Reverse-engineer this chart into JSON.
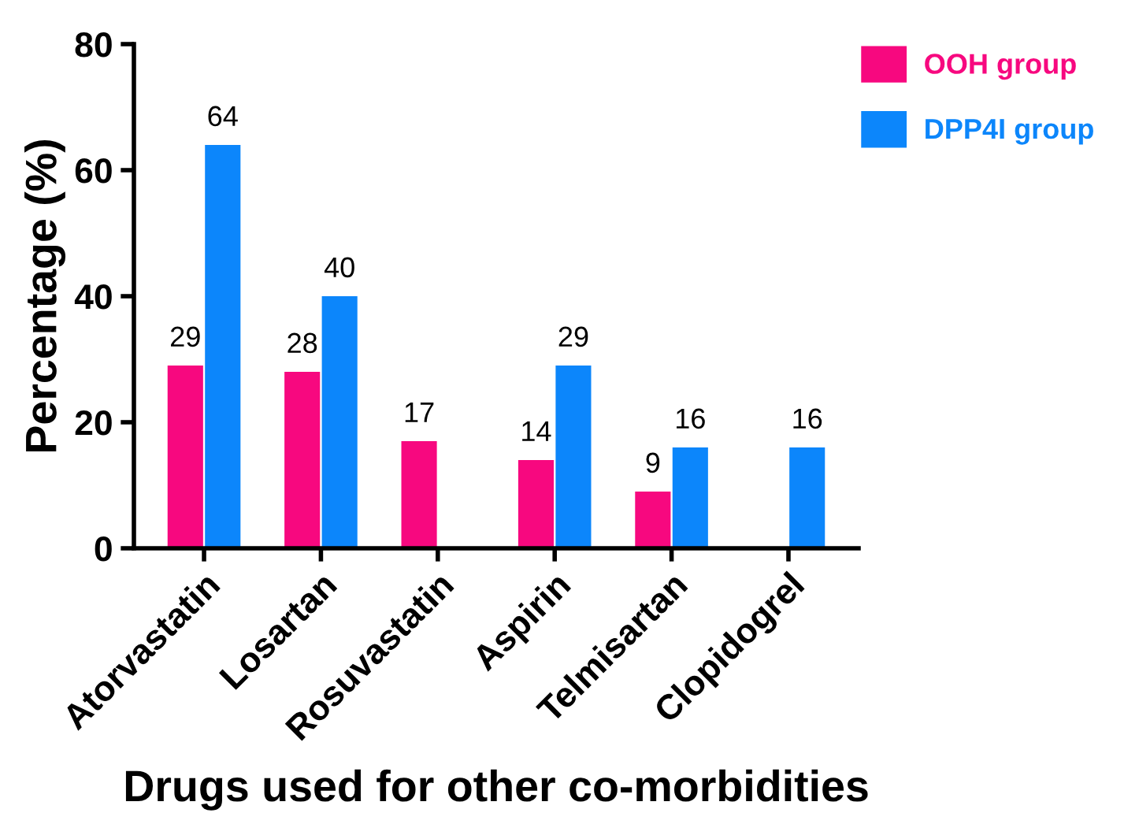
{
  "chart_data": {
    "type": "bar",
    "xlabel": "Drugs used for other co-morbidities",
    "ylabel": "Percentage (%)",
    "categories": [
      "Atorvastatin",
      "Losartan",
      "Rosuvastatin",
      "Aspirin",
      "Telmisartan",
      "Clopidogrel"
    ],
    "series": [
      {
        "name": "OOH group",
        "color": "#f7087f",
        "values": [
          29,
          28,
          17,
          14,
          9,
          null
        ]
      },
      {
        "name": "DPP4I group",
        "color": "#0c86fb",
        "values": [
          64,
          40,
          null,
          29,
          16,
          16
        ]
      }
    ],
    "ylim": [
      0,
      80
    ],
    "yticks": [
      0,
      20,
      40,
      60,
      80
    ],
    "data_labels": true,
    "grid": false,
    "legend": "top right"
  }
}
